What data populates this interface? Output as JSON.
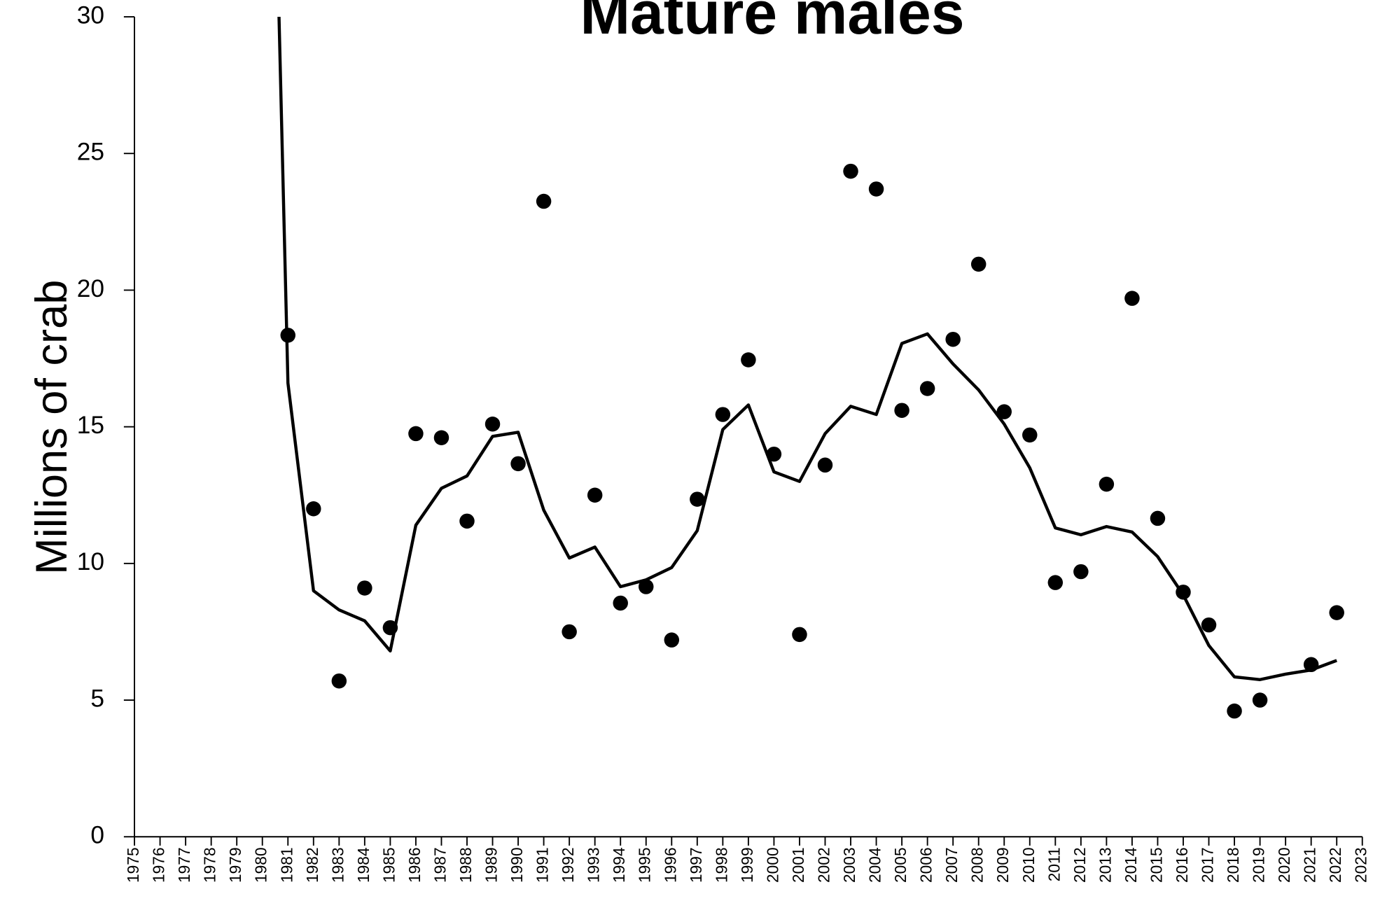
{
  "chart_data": {
    "type": "line_scatter",
    "title": "Mature males",
    "y_label": "Millions of crab",
    "xlim": [
      1975,
      2023
    ],
    "xticks": [
      1975,
      1976,
      1977,
      1978,
      1979,
      1980,
      1981,
      1982,
      1983,
      1984,
      1985,
      1986,
      1987,
      1988,
      1989,
      1990,
      1991,
      1992,
      1993,
      1994,
      1995,
      1996,
      1997,
      1998,
      1999,
      2000,
      2001,
      2002,
      2003,
      2004,
      2005,
      2006,
      2007,
      2008,
      2009,
      2010,
      2011,
      2012,
      2013,
      2014,
      2015,
      2016,
      2017,
      2018,
      2019,
      2020,
      2021,
      2022,
      2023
    ],
    "ylim": [
      0,
      30
    ],
    "yticks": [
      0,
      5,
      10,
      15,
      20,
      25,
      30
    ],
    "series": [
      {
        "mark": "line",
        "color": "#000000",
        "x": [
          1980,
          1981,
          1982,
          1983,
          1984,
          1985,
          1986,
          1987,
          1988,
          1989,
          1990,
          1991,
          1992,
          1993,
          1994,
          1995,
          1996,
          1997,
          1998,
          1999,
          2000,
          2001,
          2002,
          2003,
          2004,
          2005,
          2006,
          2007,
          2008,
          2009,
          2010,
          2011,
          2012,
          2013,
          2014,
          2015,
          2016,
          2017,
          2018,
          2019,
          2020,
          2021,
          2022
        ],
        "values": [
          55,
          16.6,
          9.0,
          8.3,
          7.9,
          6.8,
          11.4,
          12.75,
          13.2,
          14.65,
          14.8,
          11.95,
          10.2,
          10.6,
          9.15,
          9.4,
          9.85,
          11.2,
          14.9,
          15.8,
          13.35,
          13.0,
          14.75,
          15.75,
          15.45,
          18.05,
          18.4,
          17.3,
          16.35,
          15.1,
          13.5,
          11.3,
          11.05,
          11.35,
          11.15,
          10.25,
          8.85,
          7.0,
          5.85,
          5.75,
          5.95,
          6.1,
          6.45
        ]
      },
      {
        "mark": "scatter",
        "color": "#000000",
        "x": [
          1981,
          1982,
          1983,
          1984,
          1985,
          1986,
          1987,
          1988,
          1989,
          1990,
          1991,
          1992,
          1993,
          1994,
          1995,
          1996,
          1997,
          1998,
          1999,
          2000,
          2001,
          2002,
          2003,
          2004,
          2005,
          2006,
          2007,
          2008,
          2009,
          2010,
          2011,
          2012,
          2013,
          2014,
          2015,
          2016,
          2017,
          2018,
          2019,
          2020,
          2021,
          2022
        ],
        "values": [
          18.35,
          12.0,
          5.7,
          9.1,
          7.65,
          14.75,
          14.6,
          11.55,
          15.1,
          13.65,
          23.25,
          7.5,
          12.5,
          8.55,
          9.15,
          7.2,
          12.35,
          15.45,
          17.45,
          14.0,
          7.4,
          13.6,
          24.35,
          23.7,
          15.6,
          16.4,
          18.2,
          20.95,
          15.55,
          14.7,
          9.3,
          9.7,
          12.9,
          19.7,
          11.65,
          8.95,
          7.75,
          4.6,
          5.0,
          null,
          6.3,
          8.2
        ]
      }
    ]
  }
}
